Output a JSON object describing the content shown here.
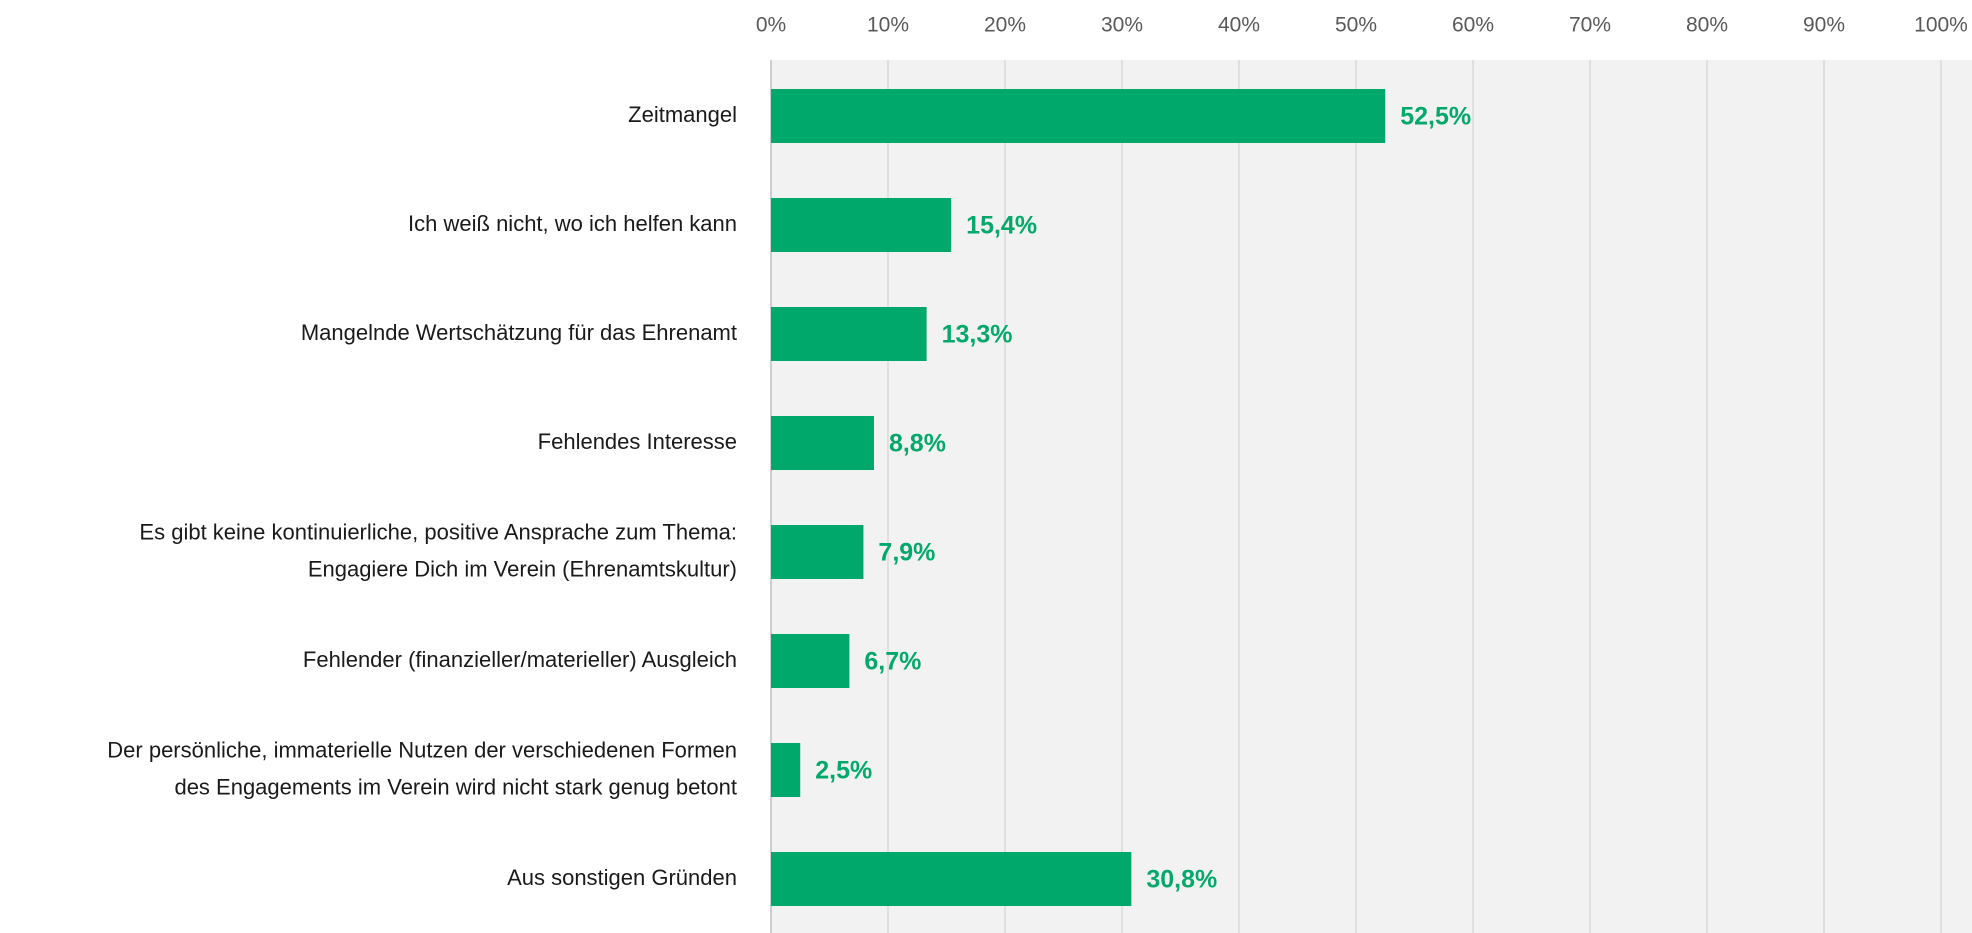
{
  "chart_data": {
    "type": "bar",
    "orientation": "horizontal",
    "categories": [
      [
        "Zeitmangel"
      ],
      [
        "Ich weiß nicht, wo ich helfen kann"
      ],
      [
        "Mangelnde Wertschätzung für das Ehrenamt"
      ],
      [
        "Fehlendes Interesse"
      ],
      [
        "Es gibt keine kontinuierliche, positive Ansprache zum Thema:",
        "Engagiere Dich im Verein (Ehrenamtskultur)"
      ],
      [
        "Fehlender (finanzieller/materieller) Ausgleich"
      ],
      [
        "Der persönliche, immaterielle Nutzen der verschiedenen Formen",
        "des Engagements im Verein wird nicht stark genug betont"
      ],
      [
        "Aus sonstigen Gründen"
      ]
    ],
    "values": [
      52.5,
      15.4,
      13.3,
      8.8,
      7.9,
      6.7,
      2.5,
      30.8
    ],
    "value_labels": [
      "52,5%",
      "15,4%",
      "13,3%",
      "8,8%",
      "7,9%",
      "6,7%",
      "2,5%",
      "30,8%"
    ],
    "color": "#00a86b",
    "xlim": [
      0,
      100
    ],
    "xticks": [
      {
        "value": 0,
        "label": "0%"
      },
      {
        "value": 10,
        "label": "10%"
      },
      {
        "value": 20,
        "label": "20%"
      },
      {
        "value": 30,
        "label": "30%"
      },
      {
        "value": 40,
        "label": "40%"
      },
      {
        "value": 50,
        "label": "50%"
      },
      {
        "value": 60,
        "label": "60%"
      },
      {
        "value": 70,
        "label": "70%"
      },
      {
        "value": 80,
        "label": "80%"
      },
      {
        "value": 90,
        "label": "90%"
      },
      {
        "value": 100,
        "label": "100%"
      }
    ],
    "grid": true
  }
}
